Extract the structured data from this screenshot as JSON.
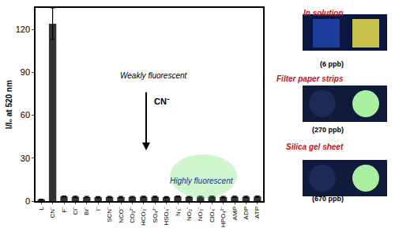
{
  "chart_data": {
    "type": "bar",
    "y_label": "I/I₀ at 520 nm",
    "categories": [
      "L",
      "CN⁻",
      "F⁻",
      "Cl⁻",
      "Br⁻",
      "I⁻",
      "SCN⁻",
      "NCO⁻",
      "CO₃²⁻",
      "HCO₃⁻",
      "SO₄²⁻",
      "HSO₄⁻",
      "N₃⁻",
      "NO₂⁻",
      "NO₃⁻",
      "ClO₄⁻",
      "HPO₄²⁻",
      "AMP",
      "ADP",
      "ATP"
    ],
    "values": [
      1.0,
      124,
      3.2,
      3.0,
      2.8,
      2.7,
      2.9,
      2.8,
      2.9,
      3.0,
      3.0,
      2.7,
      3.2,
      2.9,
      3.0,
      3.1,
      2.8,
      3.0,
      3.0,
      3.1
    ],
    "errors": [
      0.3,
      11,
      0.4,
      0.4,
      0.4,
      0.4,
      0.4,
      0.4,
      0.4,
      0.4,
      0.4,
      0.4,
      0.4,
      0.4,
      0.4,
      0.4,
      0.4,
      0.4,
      0.4,
      0.4
    ],
    "color": "#333333",
    "ylim": [
      0,
      135
    ],
    "yticks": [
      0,
      30,
      60,
      90,
      120
    ],
    "grid": false,
    "annotations": [
      "Weakly fluorescent",
      "CN⁻",
      "Highly fluorescent"
    ],
    "panels": [
      {
        "title": "In solution",
        "caption": "(6 ppb)"
      },
      {
        "title": "Filter paper strips",
        "caption": "(270 ppb)"
      },
      {
        "title": "Silica gel sheet",
        "caption": "(670 ppb)"
      }
    ]
  }
}
